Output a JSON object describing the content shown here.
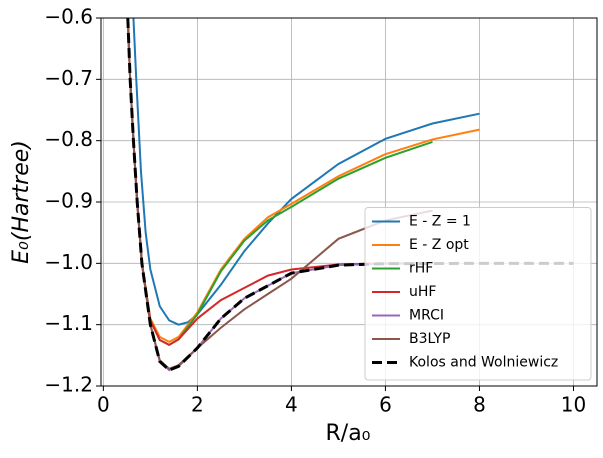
{
  "chart_data": {
    "type": "line",
    "xlabel": "R/a₀",
    "ylabel": "E₀(Hartree)",
    "xlim": [
      -0.05,
      10.5
    ],
    "ylim": [
      -1.2,
      -0.6
    ],
    "xticks": [
      0,
      2,
      4,
      6,
      8,
      10
    ],
    "yticks": [
      {
        "value": -0.6,
        "label": "−0.6"
      },
      {
        "value": -0.7,
        "label": "−0.7"
      },
      {
        "value": -0.8,
        "label": "−0.8"
      },
      {
        "value": -0.9,
        "label": "−0.9"
      },
      {
        "value": -1.0,
        "label": "−1.0"
      },
      {
        "value": -1.1,
        "label": "−1.1"
      },
      {
        "value": -1.2,
        "label": "−1.2"
      }
    ],
    "grid": true,
    "legend": "lower right",
    "series": [
      {
        "name": "E - Z = 1",
        "color": "#1f77b4",
        "linestyle": "solid",
        "x": [
          0.64,
          0.7,
          0.8,
          0.9,
          1.0,
          1.2,
          1.4,
          1.6,
          1.8,
          2.0,
          2.5,
          3.0,
          3.5,
          4.0,
          5.0,
          6.0,
          7.0,
          8.0
        ],
        "values": [
          -0.6,
          -0.7,
          -0.85,
          -0.95,
          -1.01,
          -1.07,
          -1.093,
          -1.1,
          -1.096,
          -1.083,
          -1.035,
          -0.98,
          -0.935,
          -0.895,
          -0.838,
          -0.797,
          -0.772,
          -0.756
        ]
      },
      {
        "name": "E - Z opt",
        "color": "#ff7f0e",
        "linestyle": "solid",
        "x": [
          0.52,
          0.57,
          0.64,
          0.72,
          0.82,
          1.0,
          1.2,
          1.4,
          1.6,
          2.0,
          2.5,
          3.0,
          3.5,
          4.0,
          5.0,
          6.0,
          7.0,
          8.0
        ],
        "values": [
          -0.6,
          -0.7,
          -0.8,
          -0.9,
          -1.0,
          -1.09,
          -1.12,
          -1.128,
          -1.12,
          -1.08,
          -1.01,
          -0.96,
          -0.925,
          -0.903,
          -0.858,
          -0.822,
          -0.798,
          -0.782
        ]
      },
      {
        "name": "rHF",
        "color": "#2ca02c",
        "linestyle": "solid",
        "x": [
          0.52,
          0.57,
          0.64,
          0.72,
          0.82,
          1.0,
          1.2,
          1.4,
          1.6,
          2.0,
          2.5,
          3.0,
          3.5,
          4.0,
          5.0,
          6.0,
          7.0
        ],
        "values": [
          -0.6,
          -0.7,
          -0.8,
          -0.9,
          -1.0,
          -1.093,
          -1.125,
          -1.133,
          -1.124,
          -1.083,
          -1.013,
          -0.963,
          -0.93,
          -0.908,
          -0.862,
          -0.828,
          -0.802
        ]
      },
      {
        "name": "uHF",
        "color": "#d62728",
        "linestyle": "solid",
        "x": [
          0.52,
          0.57,
          0.64,
          0.72,
          0.82,
          1.0,
          1.2,
          1.4,
          1.6,
          2.0,
          2.5,
          3.0,
          3.5,
          4.0,
          5.0,
          6.0,
          7.0
        ],
        "values": [
          -0.6,
          -0.7,
          -0.8,
          -0.9,
          -1.0,
          -1.093,
          -1.125,
          -1.133,
          -1.124,
          -1.09,
          -1.06,
          -1.04,
          -1.02,
          -1.01,
          -1.002,
          -1.0,
          -1.0
        ]
      },
      {
        "name": "MRCI",
        "color": "#9467bd",
        "linestyle": "solid",
        "x": [
          0.52,
          0.57,
          0.64,
          0.72,
          0.82,
          1.0,
          1.2,
          1.4,
          1.6,
          2.0,
          2.5,
          3.0,
          4.0,
          5.0,
          6.0,
          7.0
        ],
        "values": [
          -0.6,
          -0.7,
          -0.8,
          -0.9,
          -1.0,
          -1.1,
          -1.16,
          -1.174,
          -1.168,
          -1.138,
          -1.09,
          -1.057,
          -1.016,
          -1.003,
          -1.0006,
          -1.0
        ]
      },
      {
        "name": "B3LYP",
        "color": "#8c564b",
        "linestyle": "solid",
        "x": [
          0.52,
          0.57,
          0.64,
          0.72,
          0.82,
          1.0,
          1.2,
          1.4,
          1.6,
          2.0,
          2.5,
          3.0,
          3.5,
          4.0,
          5.0,
          6.0,
          7.0
        ],
        "values": [
          -0.6,
          -0.7,
          -0.8,
          -0.9,
          -1.0,
          -1.1,
          -1.158,
          -1.172,
          -1.166,
          -1.138,
          -1.105,
          -1.075,
          -1.05,
          -1.025,
          -0.96,
          -0.93,
          -0.914
        ]
      },
      {
        "name": "Kolos and Wolniewicz",
        "color": "#000000",
        "linestyle": "dashed",
        "x": [
          0.52,
          0.57,
          0.64,
          0.72,
          0.82,
          1.0,
          1.2,
          1.4,
          1.6,
          2.0,
          2.5,
          3.0,
          4.0,
          5.0,
          6.0,
          8.0,
          10.0
        ],
        "values": [
          -0.6,
          -0.7,
          -0.8,
          -0.9,
          -1.0,
          -1.1,
          -1.16,
          -1.174,
          -1.168,
          -1.138,
          -1.09,
          -1.057,
          -1.016,
          -1.003,
          -1.0006,
          -1.0,
          -1.0
        ]
      }
    ]
  }
}
